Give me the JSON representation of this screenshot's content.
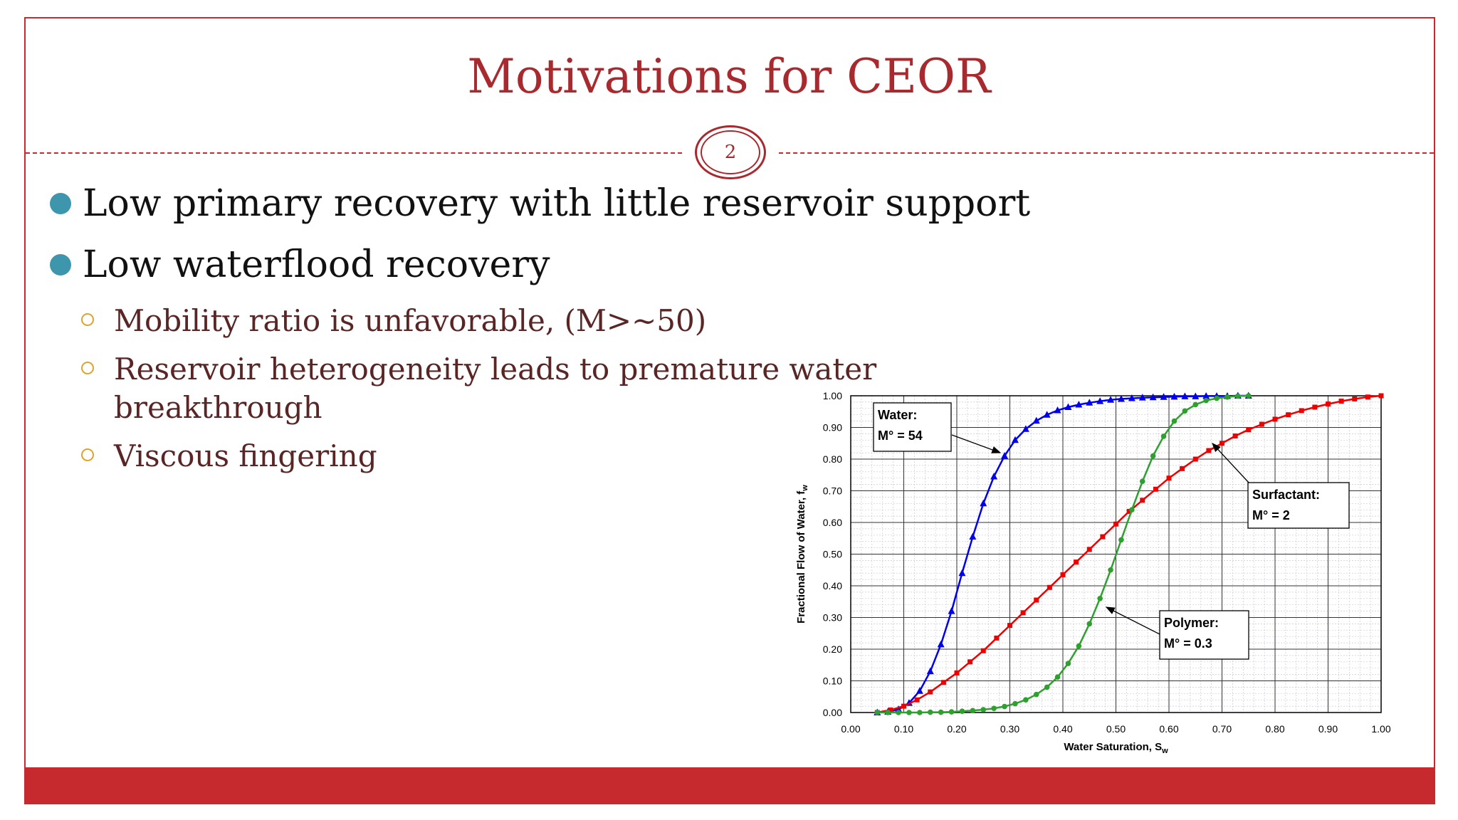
{
  "slide": {
    "title": "Motivations for CEOR",
    "page_number": "2",
    "bullets": [
      "Low primary recovery with little reservoir support",
      "Low waterflood recovery"
    ],
    "sub_bullets": [
      "Mobility ratio is unfavorable, (M>~50)",
      "Reservoir heterogeneity leads to premature water",
      "breakthrough",
      "Viscous fingering"
    ],
    "colors": {
      "title": "#a82a2e",
      "accent": "#c62a2e",
      "bullet_dot": "#3d96ab",
      "sub_bullet_ring": "#e0a22a"
    }
  },
  "chart_data": {
    "type": "line",
    "title": "",
    "xlabel": "Water Saturation, S",
    "xlabel_sub": "w",
    "ylabel": "Fractional Flow of Water, f",
    "ylabel_sub": "w",
    "xlim": [
      0,
      1
    ],
    "ylim": [
      0,
      1
    ],
    "x_ticks": [
      "0.00",
      "0.10",
      "0.20",
      "0.30",
      "0.40",
      "0.50",
      "0.60",
      "0.70",
      "0.80",
      "0.90",
      "1.00"
    ],
    "y_ticks": [
      "0.00",
      "0.10",
      "0.20",
      "0.30",
      "0.40",
      "0.50",
      "0.60",
      "0.70",
      "0.80",
      "0.90",
      "1.00"
    ],
    "grid": true,
    "series": [
      {
        "color": "#0000ee",
        "marker": "triangle",
        "x": [
          0.05,
          0.07,
          0.09,
          0.11,
          0.13,
          0.15,
          0.17,
          0.19,
          0.21,
          0.23,
          0.25,
          0.27,
          0.29,
          0.31,
          0.33,
          0.35,
          0.37,
          0.39,
          0.41,
          0.43,
          0.45,
          0.47,
          0.49,
          0.51,
          0.53,
          0.55,
          0.57,
          0.59,
          0.61,
          0.63,
          0.65,
          0.67,
          0.69,
          0.71,
          0.73,
          0.75
        ],
        "y": [
          0.0,
          0.002,
          0.01,
          0.03,
          0.068,
          0.13,
          0.215,
          0.32,
          0.44,
          0.555,
          0.66,
          0.745,
          0.81,
          0.86,
          0.895,
          0.921,
          0.94,
          0.954,
          0.964,
          0.972,
          0.978,
          0.983,
          0.987,
          0.99,
          0.992,
          0.994,
          0.995,
          0.996,
          0.997,
          0.998,
          0.998,
          0.999,
          0.999,
          0.999,
          1.0,
          1.0
        ]
      },
      {
        "color": "#ee0000",
        "marker": "square",
        "x": [
          0.05,
          0.075,
          0.1,
          0.125,
          0.15,
          0.175,
          0.2,
          0.225,
          0.25,
          0.275,
          0.3,
          0.325,
          0.35,
          0.375,
          0.4,
          0.425,
          0.45,
          0.475,
          0.5,
          0.525,
          0.55,
          0.575,
          0.6,
          0.625,
          0.65,
          0.675,
          0.7,
          0.725,
          0.75,
          0.775,
          0.8,
          0.825,
          0.85,
          0.875,
          0.9,
          0.925,
          0.95,
          0.975,
          1.0
        ],
        "y": [
          0.0,
          0.008,
          0.02,
          0.04,
          0.065,
          0.095,
          0.125,
          0.16,
          0.195,
          0.235,
          0.275,
          0.315,
          0.355,
          0.395,
          0.435,
          0.475,
          0.515,
          0.555,
          0.595,
          0.635,
          0.67,
          0.705,
          0.74,
          0.77,
          0.8,
          0.827,
          0.85,
          0.873,
          0.893,
          0.91,
          0.926,
          0.94,
          0.953,
          0.964,
          0.974,
          0.983,
          0.99,
          0.996,
          1.0
        ]
      },
      {
        "color": "#2ea02e",
        "marker": "circle",
        "x": [
          0.05,
          0.07,
          0.09,
          0.11,
          0.13,
          0.15,
          0.17,
          0.19,
          0.21,
          0.23,
          0.25,
          0.27,
          0.29,
          0.31,
          0.33,
          0.35,
          0.37,
          0.39,
          0.41,
          0.43,
          0.45,
          0.47,
          0.49,
          0.51,
          0.53,
          0.55,
          0.57,
          0.59,
          0.61,
          0.63,
          0.65,
          0.67,
          0.69,
          0.71,
          0.73,
          0.75
        ],
        "y": [
          0.0,
          0.0,
          0.0,
          0.0,
          0.0,
          0.001,
          0.001,
          0.002,
          0.004,
          0.006,
          0.009,
          0.013,
          0.019,
          0.028,
          0.04,
          0.057,
          0.08,
          0.112,
          0.155,
          0.21,
          0.28,
          0.36,
          0.45,
          0.545,
          0.64,
          0.73,
          0.81,
          0.872,
          0.92,
          0.952,
          0.972,
          0.985,
          0.992,
          0.996,
          0.999,
          1.0
        ]
      }
    ],
    "annotations": [
      {
        "line1": "Water:",
        "line2": "M° = 54"
      },
      {
        "line1": "Surfactant:",
        "line2": "M° = 2"
      },
      {
        "line1": "Polymer:",
        "line2": "M° = 0.3"
      }
    ]
  }
}
